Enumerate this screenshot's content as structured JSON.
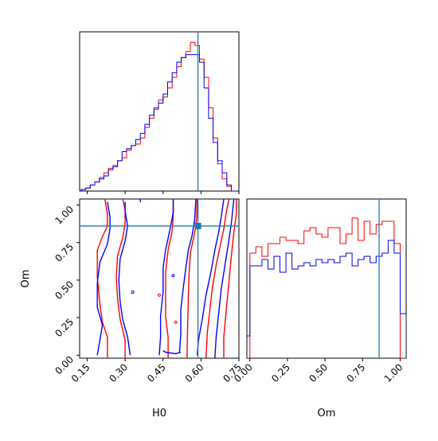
{
  "chart_data": [
    {
      "panel": "H0-marginal",
      "type": "histogram",
      "xlim": [
        0.12,
        0.75
      ],
      "truth": {
        "x": 0.588
      },
      "bins": [
        0.09,
        0.108,
        0.126,
        0.144,
        0.162,
        0.18,
        0.198,
        0.216,
        0.234,
        0.252,
        0.27,
        0.288,
        0.306,
        0.324,
        0.342,
        0.36,
        0.378,
        0.396,
        0.414,
        0.432,
        0.45,
        0.468,
        0.486,
        0.504,
        0.522,
        0.54,
        0.558,
        0.576,
        0.594,
        0.612,
        0.63,
        0.648,
        0.666,
        0.684,
        0.702,
        0.72,
        0.738
      ],
      "series": [
        {
          "color": "#ff0000",
          "values": [
            0,
            0,
            1,
            2,
            4,
            6,
            9,
            12,
            15,
            17,
            20,
            22,
            27,
            30,
            31,
            35,
            42,
            48,
            55,
            60,
            62,
            68,
            75,
            82,
            88,
            92,
            98,
            96,
            87,
            75,
            55,
            35,
            18,
            8,
            3,
            0
          ]
        },
        {
          "color": "#0000ff",
          "values": [
            0,
            0,
            1,
            2,
            4,
            6,
            8,
            10,
            14,
            16,
            20,
            26,
            28,
            30,
            34,
            38,
            44,
            50,
            54,
            58,
            64,
            72,
            78,
            85,
            88,
            90,
            90,
            90,
            85,
            68,
            48,
            32,
            20,
            12,
            4,
            0
          ]
        }
      ]
    },
    {
      "panel": "H0-Om-2d",
      "type": "contour",
      "xlabel": "H0",
      "ylabel": "Om",
      "xlim": [
        0.12,
        0.75
      ],
      "ylim": [
        -0.02,
        1.04
      ],
      "xticks": [
        "0.15",
        "0.30",
        "0.45",
        "0.60",
        "0.75"
      ],
      "yticks": [
        "0.00",
        "0.25",
        "0.50",
        "0.75",
        "1.00"
      ],
      "xtick_values": [
        0.15,
        0.3,
        0.45,
        0.6,
        0.75
      ],
      "ytick_values": [
        0.0,
        0.25,
        0.5,
        0.75,
        1.0
      ],
      "truth": {
        "x": 0.588,
        "y": 0.86
      },
      "series": [
        {
          "color": "#ff0000",
          "contours": [
            [
              [
                0.23,
                -0.02
              ],
              [
                0.23,
                0.12
              ],
              [
                0.21,
                0.22
              ],
              [
                0.2,
                0.34
              ],
              [
                0.19,
                0.52
              ],
              [
                0.19,
                0.7
              ],
              [
                0.21,
                0.79
              ],
              [
                0.23,
                0.86
              ],
              [
                0.23,
                0.94
              ],
              [
                0.22,
                1.04
              ]
            ],
            [
              [
                0.545,
                -0.02
              ],
              [
                0.546,
                0.1
              ],
              [
                0.548,
                0.25
              ],
              [
                0.55,
                0.4
              ],
              [
                0.553,
                0.55
              ],
              [
                0.558,
                0.68
              ],
              [
                0.568,
                0.76
              ],
              [
                0.578,
                0.84
              ],
              [
                0.583,
                0.92
              ],
              [
                0.585,
                1.04
              ]
            ],
            [
              [
                0.3,
                -0.02
              ],
              [
                0.3,
                0.1
              ],
              [
                0.28,
                0.24
              ],
              [
                0.27,
                0.38
              ],
              [
                0.265,
                0.52
              ],
              [
                0.27,
                0.66
              ],
              [
                0.29,
                0.78
              ],
              [
                0.3,
                0.88
              ],
              [
                0.3,
                0.97
              ],
              [
                0.29,
                1.04
              ]
            ],
            [
              [
                0.47,
                -0.02
              ],
              [
                0.47,
                0.12
              ],
              [
                0.46,
                0.26
              ],
              [
                0.46,
                0.4
              ],
              [
                0.46,
                0.55
              ],
              [
                0.47,
                0.7
              ],
              [
                0.485,
                0.82
              ],
              [
                0.49,
                0.92
              ],
              [
                0.49,
                1.04
              ]
            ],
            [
              [
                0.62,
                -0.02
              ],
              [
                0.625,
                0.15
              ],
              [
                0.635,
                0.3
              ],
              [
                0.645,
                0.45
              ],
              [
                0.66,
                0.6
              ],
              [
                0.675,
                0.72
              ],
              [
                0.69,
                0.84
              ],
              [
                0.7,
                0.95
              ],
              [
                0.71,
                1.04
              ]
            ],
            [
              [
                0.69,
                -0.02
              ],
              [
                0.69,
                0.12
              ],
              [
                0.7,
                0.3
              ],
              [
                0.71,
                0.48
              ],
              [
                0.72,
                0.66
              ],
              [
                0.73,
                0.82
              ],
              [
                0.74,
                0.94
              ],
              [
                0.74,
                1.04
              ]
            ]
          ]
        },
        {
          "color": "#0000ff",
          "contours": [
            [
              [
                0.19,
                0.0
              ],
              [
                0.2,
                0.1
              ],
              [
                0.21,
                0.2
              ],
              [
                0.19,
                0.32
              ],
              [
                0.19,
                0.48
              ],
              [
                0.2,
                0.62
              ],
              [
                0.23,
                0.74
              ],
              [
                0.24,
                0.84
              ],
              [
                0.24,
                0.92
              ],
              [
                0.23,
                1.02
              ]
            ],
            [
              [
                0.32,
                0.0
              ],
              [
                0.31,
                0.12
              ],
              [
                0.29,
                0.24
              ],
              [
                0.28,
                0.36
              ],
              [
                0.275,
                0.5
              ],
              [
                0.28,
                0.64
              ],
              [
                0.3,
                0.76
              ],
              [
                0.31,
                0.86
              ],
              [
                0.3,
                0.96
              ],
              [
                0.3,
                1.02
              ]
            ],
            [
              [
                0.36,
                1.02
              ],
              [
                0.36,
                1.04
              ]
            ],
            [
              [
                0.435,
                0.0
              ],
              [
                0.44,
                0.12
              ],
              [
                0.44,
                0.26
              ],
              [
                0.45,
                0.42
              ],
              [
                0.45,
                0.58
              ],
              [
                0.46,
                0.7
              ],
              [
                0.47,
                0.78
              ],
              [
                0.48,
                0.86
              ],
              [
                0.49,
                0.95
              ],
              [
                0.49,
                1.04
              ]
            ],
            [
              [
                0.515,
                0.02
              ],
              [
                0.52,
                0.14
              ],
              [
                0.52,
                0.3
              ],
              [
                0.53,
                0.45
              ],
              [
                0.54,
                0.58
              ],
              [
                0.55,
                0.7
              ],
              [
                0.565,
                0.8
              ],
              [
                0.575,
                0.9
              ],
              [
                0.58,
                1.04
              ]
            ],
            [
              [
                0.585,
                0.0
              ],
              [
                0.59,
                0.1
              ],
              [
                0.605,
                0.24
              ],
              [
                0.62,
                0.4
              ],
              [
                0.64,
                0.56
              ],
              [
                0.655,
                0.7
              ],
              [
                0.67,
                0.82
              ],
              [
                0.68,
                0.92
              ],
              [
                0.69,
                1.04
              ]
            ],
            [
              [
                0.655,
                -0.02
              ],
              [
                0.66,
                0.12
              ],
              [
                0.67,
                0.28
              ],
              [
                0.68,
                0.44
              ],
              [
                0.695,
                0.6
              ],
              [
                0.71,
                0.76
              ],
              [
                0.72,
                0.88
              ],
              [
                0.73,
                1.04
              ]
            ],
            [
              [
                0.45,
                0.03
              ],
              [
                0.46,
                0.02
              ],
              [
                0.5,
                0.01
              ],
              [
                0.52,
                0.02
              ]
            ]
          ]
        }
      ]
    },
    {
      "panel": "Om-marginal",
      "type": "histogram",
      "xlabel": "Om",
      "xlim": [
        -0.02,
        1.04
      ],
      "xticks": [
        "0.00",
        "0.25",
        "0.50",
        "0.75",
        "1.00"
      ],
      "xtick_values": [
        0.0,
        0.25,
        0.5,
        0.75,
        1.0
      ],
      "truth": {
        "x": 0.86
      },
      "bins": [
        -0.04,
        0.0,
        0.04,
        0.08,
        0.12,
        0.16,
        0.2,
        0.24,
        0.28,
        0.32,
        0.36,
        0.4,
        0.44,
        0.48,
        0.52,
        0.56,
        0.6,
        0.64,
        0.68,
        0.72,
        0.76,
        0.8,
        0.84,
        0.88,
        0.92,
        0.96,
        1.0,
        1.04
      ],
      "series": [
        {
          "color": "#ff0000",
          "values": [
            0,
            66,
            70,
            64,
            72,
            72,
            76,
            74,
            74,
            72,
            80,
            82,
            78,
            76,
            82,
            82,
            72,
            78,
            88,
            74,
            86,
            78,
            84,
            86,
            86,
            72,
            0
          ]
        },
        {
          "color": "#0000ff",
          "values": [
            14,
            58,
            58,
            62,
            56,
            64,
            54,
            66,
            56,
            58,
            60,
            58,
            62,
            60,
            62,
            60,
            64,
            66,
            58,
            62,
            64,
            60,
            64,
            66,
            74,
            66,
            28
          ]
        }
      ],
      "y_max": 100
    }
  ]
}
